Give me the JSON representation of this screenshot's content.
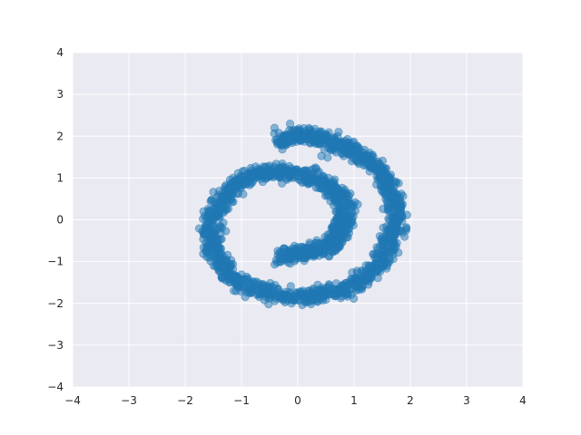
{
  "chart_data": {
    "type": "scatter",
    "title": "",
    "xlabel": "",
    "ylabel": "",
    "xlim": [
      -4,
      4
    ],
    "ylim": [
      -4,
      4
    ],
    "xticks": [
      -4,
      -3,
      -2,
      -1,
      0,
      1,
      2,
      3,
      4
    ],
    "yticks": [
      -4,
      -3,
      -2,
      -1,
      0,
      1,
      2,
      3,
      4
    ],
    "xtick_labels": [
      "−4",
      "−3",
      "−2",
      "−1",
      "0",
      "1",
      "2",
      "3",
      "4"
    ],
    "ytick_labels": [
      "−4",
      "−3",
      "−2",
      "−1",
      "0",
      "1",
      "2",
      "3",
      "4"
    ],
    "grid": true,
    "style": "seaborn-darkgrid",
    "colors": {
      "background": "#EAEAF2",
      "grid": "#FFFFFF",
      "marker": "#1F77B4"
    },
    "marker_alpha": 0.5,
    "series": [
      {
        "points": [
          [
            -0.3,
            1.85
          ],
          [
            -0.2,
            1.97
          ],
          [
            0.0,
            2.02
          ],
          [
            0.2,
            2.0
          ],
          [
            0.4,
            1.95
          ],
          [
            0.6,
            1.87
          ],
          [
            0.8,
            1.78
          ],
          [
            1.0,
            1.65
          ],
          [
            1.2,
            1.45
          ],
          [
            1.4,
            1.25
          ],
          [
            1.55,
            1.0
          ],
          [
            1.65,
            0.7
          ],
          [
            1.72,
            0.4
          ],
          [
            1.75,
            0.1
          ],
          [
            1.72,
            -0.2
          ],
          [
            1.65,
            -0.5
          ],
          [
            1.55,
            -0.8
          ],
          [
            1.4,
            -1.1
          ],
          [
            1.2,
            -1.35
          ],
          [
            1.0,
            -1.55
          ],
          [
            0.8,
            -1.68
          ],
          [
            0.5,
            -1.78
          ],
          [
            0.2,
            -1.83
          ],
          [
            -0.1,
            -1.85
          ],
          [
            -0.4,
            -1.8
          ],
          [
            -0.7,
            -1.7
          ],
          [
            -1.0,
            -1.52
          ],
          [
            -1.2,
            -1.3
          ],
          [
            -1.4,
            -1.0
          ],
          [
            -1.5,
            -0.7
          ],
          [
            -1.55,
            -0.35
          ],
          [
            -1.52,
            0.0
          ],
          [
            -1.42,
            0.35
          ],
          [
            -1.28,
            0.62
          ],
          [
            -1.1,
            0.85
          ],
          [
            -0.85,
            1.03
          ],
          [
            -0.6,
            1.12
          ],
          [
            -0.3,
            1.15
          ],
          [
            -0.05,
            1.12
          ],
          [
            0.25,
            1.03
          ],
          [
            0.5,
            0.88
          ],
          [
            0.68,
            0.68
          ],
          [
            0.8,
            0.45
          ],
          [
            0.85,
            0.2
          ],
          [
            0.83,
            -0.05
          ],
          [
            0.76,
            -0.3
          ],
          [
            0.65,
            -0.5
          ],
          [
            0.5,
            -0.65
          ],
          [
            0.3,
            -0.75
          ],
          [
            0.05,
            -0.8
          ],
          [
            -0.15,
            -0.85
          ],
          [
            -0.3,
            -0.9
          ]
        ]
      }
    ]
  }
}
